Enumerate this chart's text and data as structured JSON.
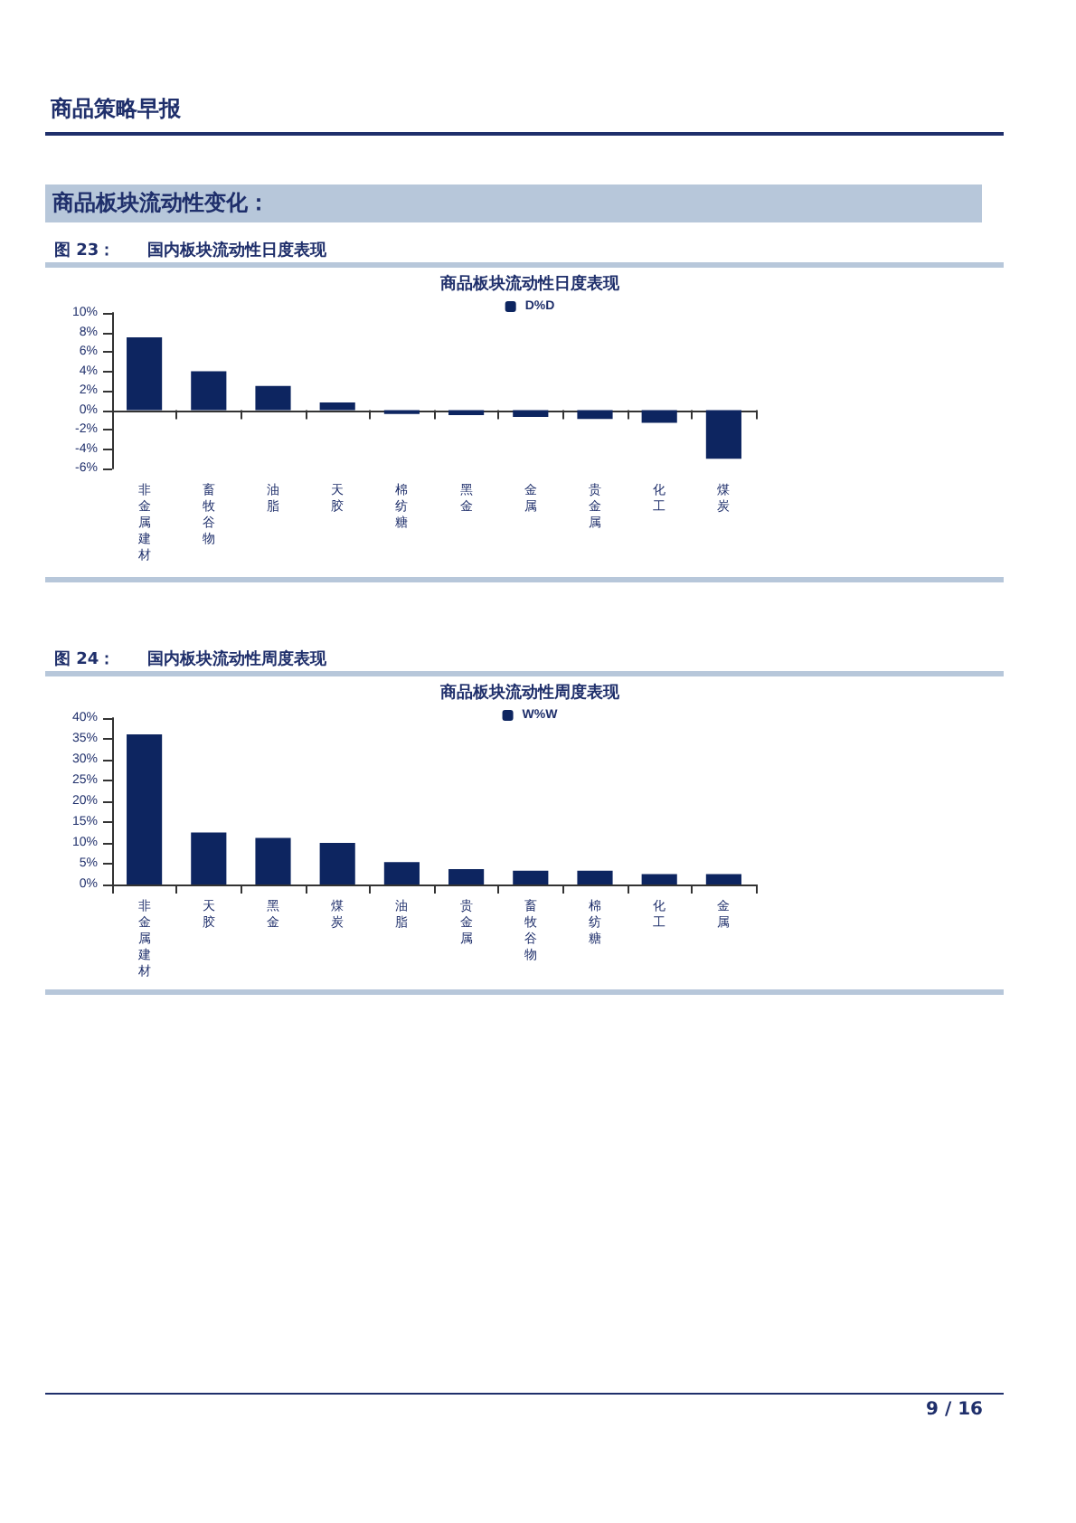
{
  "chart_data": [
    {
      "type": "bar",
      "title": "商品板块流动性日度表现",
      "annotations": [
        "商品策略早报",
        "商品板块流动性变化：",
        "图 23：　　国内板块流动性日度表现"
      ],
      "categories": [
        "非金属建材",
        "畜牧谷物",
        "油脂",
        "天胶",
        "棉纺糖",
        "黑金",
        "金属",
        "贵金属",
        "化工",
        "煤炭"
      ],
      "series": [
        {
          "name": "D%D",
          "color": "#0d2560",
          "values": [
            7.5,
            4.0,
            2.5,
            0.8,
            -0.4,
            -0.5,
            -0.7,
            -0.9,
            -1.3,
            -5.0
          ]
        }
      ],
      "ylim": [
        -6,
        10
      ],
      "yticks": [
        {
          "value": -6,
          "label": "-6%"
        },
        {
          "value": -4,
          "label": "-4%"
        },
        {
          "value": -2,
          "label": "-2%"
        },
        {
          "value": 0,
          "label": "0%"
        },
        {
          "value": 2,
          "label": "2%"
        },
        {
          "value": 4,
          "label": "4%"
        },
        {
          "value": 6,
          "label": "6%"
        },
        {
          "value": 8,
          "label": "8%"
        },
        {
          "value": 10,
          "label": "10%"
        }
      ],
      "legend": "top"
    },
    {
      "type": "bar",
      "title": "商品板块流动性周度表现",
      "annotations": [
        "图 24：　　国内板块流动性周度表现",
        "9 / 16"
      ],
      "categories": [
        "非金属建材",
        "天胶",
        "黑金",
        "煤炭",
        "油脂",
        "贵金属",
        "畜牧谷物",
        "棉纺糖",
        "化工",
        "金属"
      ],
      "series": [
        {
          "name": "W%W",
          "color": "#0d2560",
          "values": [
            36.1,
            12.5,
            11.2,
            10.0,
            5.4,
            3.7,
            3.3,
            3.3,
            2.5,
            2.5
          ]
        }
      ],
      "ylim": [
        0,
        40
      ],
      "yticks": [
        {
          "value": 0,
          "label": "0%"
        },
        {
          "value": 5,
          "label": "5%"
        },
        {
          "value": 10,
          "label": "10%"
        },
        {
          "value": 15,
          "label": "15%"
        },
        {
          "value": 20,
          "label": "20%"
        },
        {
          "value": 25,
          "label": "25%"
        },
        {
          "value": 30,
          "label": "30%"
        },
        {
          "value": 35,
          "label": "35%"
        },
        {
          "value": 40,
          "label": "40%"
        }
      ],
      "legend": "top"
    }
  ]
}
